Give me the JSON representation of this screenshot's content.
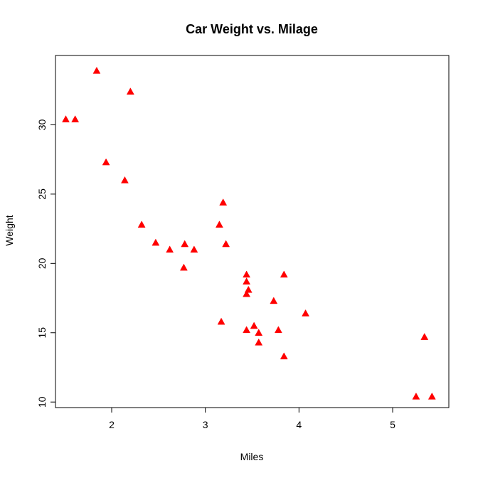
{
  "chart_data": {
    "type": "scatter",
    "title": "Car Weight vs. Milage",
    "xlabel": "Miles",
    "ylabel": "Weight",
    "xlim": [
      1.4,
      5.6
    ],
    "ylim": [
      9.6,
      35.0
    ],
    "x_ticks": [
      2,
      3,
      4,
      5
    ],
    "y_ticks": [
      10,
      15,
      20,
      25,
      30
    ],
    "marker": "filled-triangle",
    "grid": false,
    "legend": "none",
    "colors": {
      "points": "#ff0000",
      "axes": "#000000",
      "background": "#ffffff"
    },
    "points": [
      {
        "x": 1.51,
        "y": 30.4
      },
      {
        "x": 1.61,
        "y": 30.4
      },
      {
        "x": 1.84,
        "y": 33.9
      },
      {
        "x": 1.94,
        "y": 27.3
      },
      {
        "x": 2.14,
        "y": 26.0
      },
      {
        "x": 2.2,
        "y": 32.4
      },
      {
        "x": 2.32,
        "y": 22.8
      },
      {
        "x": 2.47,
        "y": 21.5
      },
      {
        "x": 2.62,
        "y": 21.0
      },
      {
        "x": 2.77,
        "y": 19.7
      },
      {
        "x": 2.78,
        "y": 21.4
      },
      {
        "x": 2.88,
        "y": 21.0
      },
      {
        "x": 3.15,
        "y": 22.8
      },
      {
        "x": 3.17,
        "y": 15.8
      },
      {
        "x": 3.19,
        "y": 24.4
      },
      {
        "x": 3.22,
        "y": 21.4
      },
      {
        "x": 3.44,
        "y": 19.2
      },
      {
        "x": 3.44,
        "y": 18.7
      },
      {
        "x": 3.44,
        "y": 17.8
      },
      {
        "x": 3.44,
        "y": 15.2
      },
      {
        "x": 3.46,
        "y": 18.1
      },
      {
        "x": 3.52,
        "y": 15.5
      },
      {
        "x": 3.57,
        "y": 15.0
      },
      {
        "x": 3.57,
        "y": 14.3
      },
      {
        "x": 3.73,
        "y": 17.3
      },
      {
        "x": 3.78,
        "y": 15.2
      },
      {
        "x": 3.84,
        "y": 19.2
      },
      {
        "x": 3.84,
        "y": 13.3
      },
      {
        "x": 4.07,
        "y": 16.4
      },
      {
        "x": 5.25,
        "y": 10.4
      },
      {
        "x": 5.34,
        "y": 14.7
      },
      {
        "x": 5.42,
        "y": 10.4
      }
    ]
  }
}
